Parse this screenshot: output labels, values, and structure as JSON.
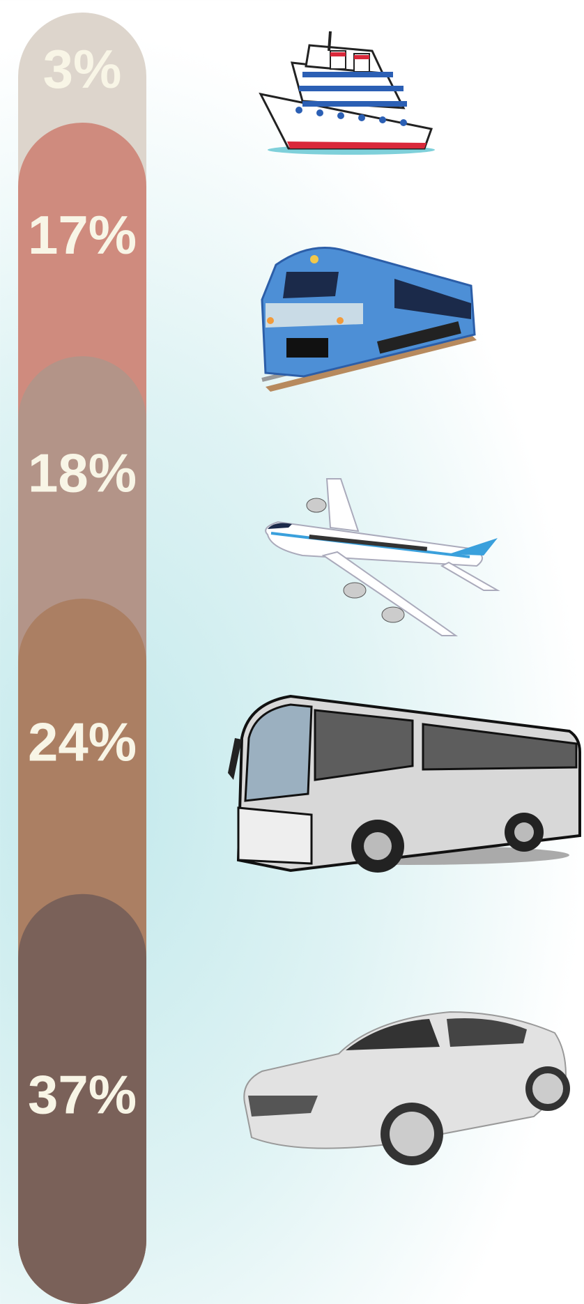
{
  "chart_data": {
    "type": "stacked-pill",
    "categories": [
      null,
      null,
      null,
      null,
      null
    ],
    "values": [
      3,
      17,
      18,
      24,
      37
    ],
    "value_labels": [
      "3%",
      "17%",
      "18%",
      "24%",
      "37%"
    ],
    "colors": [
      "#ddd5cc",
      "#cf8b7e",
      "#b39488",
      "#ab7f63",
      "#7a6159"
    ],
    "label_color": "#f8f5e6"
  }
}
